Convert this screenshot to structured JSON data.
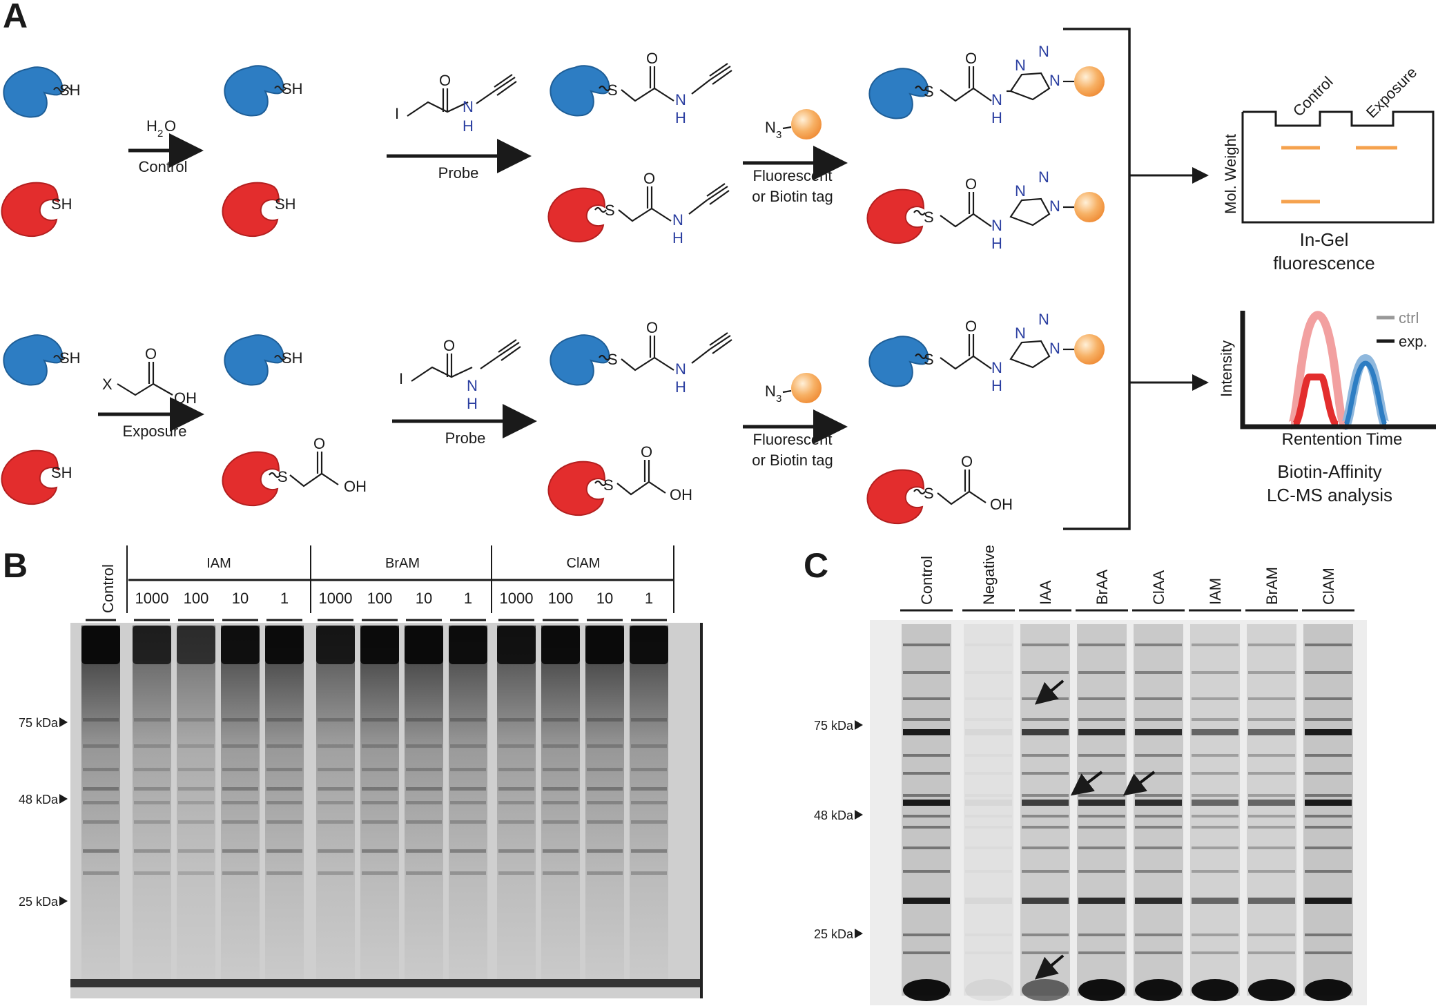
{
  "panels": {
    "a": "A",
    "b": "B",
    "c": "C"
  },
  "colors": {
    "blue_protein": "#2d7dc3",
    "red_protein": "#e32d2d",
    "tag": "#f5a24e",
    "heteroatom": "#2a3ea0",
    "band": "#f5a24e"
  },
  "scheme": {
    "sh": "SH",
    "s": "S",
    "oh": "OH",
    "o": "O",
    "n": "N",
    "h": "H",
    "i": "I",
    "x": "X",
    "n3": "N",
    "n3_sub": "3",
    "water_h": "H",
    "water_sub": "2",
    "water_o": "O",
    "control_label": "Control",
    "exposure_label": "Exposure",
    "probe_label": "Probe",
    "tag_line1": "Fluorescent",
    "tag_line2": "or Biotin tag"
  },
  "gel_cartoon": {
    "lane1": "Control",
    "lane2": "Exposure",
    "ylabel": "Mol. Weight",
    "caption1": "In-Gel",
    "caption2": "fluorescence"
  },
  "lcms": {
    "ylabel": "Intensity",
    "xlabel": "Rentention Time",
    "legend_ctrl": "ctrl",
    "legend_exp": "exp.",
    "caption1": "Biotin-Affinity",
    "caption2": "LC-MS analysis"
  },
  "gel_b": {
    "control": "Control",
    "groups": [
      "IAM",
      "BrAM",
      "ClAM"
    ],
    "concentrations": [
      "1000",
      "100",
      "10",
      "1"
    ],
    "markers": [
      "75 kDa",
      "48 kDa",
      "25 kDa"
    ]
  },
  "gel_c": {
    "lanes": [
      "Control",
      "Negative",
      "IAA",
      "BrAA",
      "ClAA",
      "IAM",
      "BrAM",
      "ClAM"
    ],
    "markers": [
      "75 kDa",
      "48 kDa",
      "25 kDa"
    ]
  }
}
